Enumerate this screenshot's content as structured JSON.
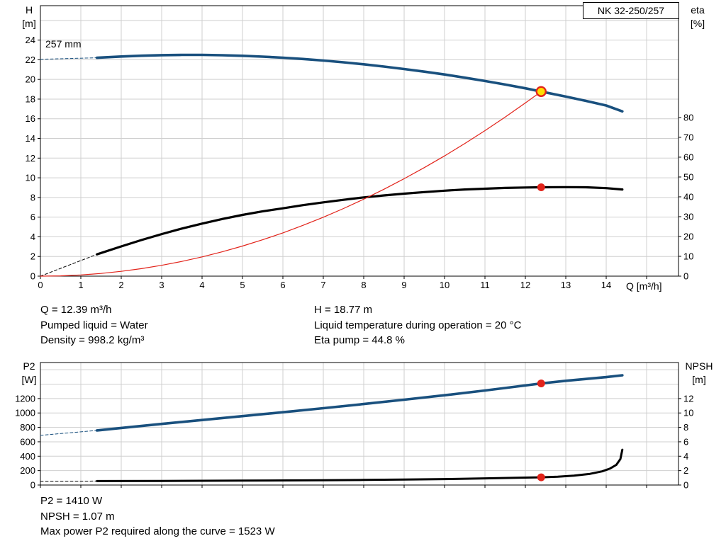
{
  "model_label": "NK 32-250/257",
  "impeller_label": "257 mm",
  "axes_labels": {
    "h_top": "H",
    "h_unit": "[m]",
    "eta_top": "eta",
    "eta_unit": "[%]",
    "q": "Q [m³/h]",
    "p2_top": "P2",
    "p2_unit": "[W]",
    "npsh_top": "NPSH",
    "npsh_unit": "[m]"
  },
  "info_top": {
    "left": [
      "Q = 12.39 m³/h",
      "Pumped liquid = Water",
      "Density = 998.2 kg/m³"
    ],
    "right": [
      "H = 18.77 m",
      "Liquid temperature during operation = 20 °C",
      "Eta pump = 44.8 %"
    ]
  },
  "info_bottom": [
    "P2 = 1410 W",
    "NPSH = 1.07 m",
    "Max power P2 required along the curve = 1523 W"
  ],
  "colors": {
    "curve_blue": "#19507e",
    "curve_black": "#000000",
    "curve_red": "#e2231a",
    "marker_yellow": "#ffdd00",
    "grid": "#cfcfcf",
    "axis": "#000000"
  },
  "chart_data": [
    {
      "type": "line",
      "title": "QH and efficiency curves",
      "xlabel": "Q [m³/h]",
      "ylabel": "H [m]",
      "y2label": "eta [%]",
      "xlim": [
        0,
        15.789
      ],
      "ylim": [
        0,
        27.5
      ],
      "y2lim": [
        0,
        136.4
      ],
      "grid_color": "#cfcfcf",
      "x_grid": [
        1,
        2,
        3,
        4,
        5,
        6,
        7,
        8,
        9,
        10,
        11,
        12,
        13,
        14,
        15
      ],
      "y_grid": [
        2,
        4,
        6,
        8,
        10,
        12,
        14,
        16,
        18,
        20,
        22,
        24,
        26
      ],
      "x_tick_marks": [
        0,
        1,
        2,
        3,
        4,
        5,
        6,
        7,
        8,
        9,
        10,
        11,
        12,
        13,
        14,
        15
      ],
      "x_ticks": [
        0,
        1,
        2,
        3,
        4,
        5,
        6,
        7,
        8,
        9,
        10,
        11,
        12,
        13,
        14
      ],
      "y_ticks": [
        0,
        2,
        4,
        6,
        8,
        10,
        12,
        14,
        16,
        18,
        20,
        22,
        24
      ],
      "y2_ticks": [
        0,
        10,
        20,
        30,
        40,
        50,
        60,
        70,
        80
      ],
      "series": [
        {
          "name": "pump-curve-extrapolated",
          "axis": "y",
          "color": "#19507e",
          "width": 1,
          "dash": "4 3",
          "points": [
            [
              0,
              22.05
            ],
            [
              1.4,
              22.2
            ]
          ]
        },
        {
          "name": "pump-curve",
          "axis": "y",
          "color": "#19507e",
          "width": 3.6,
          "points": [
            [
              1.4,
              22.2
            ],
            [
              2,
              22.33
            ],
            [
              2.5,
              22.41
            ],
            [
              3,
              22.47
            ],
            [
              3.5,
              22.5
            ],
            [
              4,
              22.5
            ],
            [
              4.5,
              22.46
            ],
            [
              5,
              22.4
            ],
            [
              5.5,
              22.32
            ],
            [
              6,
              22.21
            ],
            [
              6.5,
              22.08
            ],
            [
              7,
              21.92
            ],
            [
              7.5,
              21.74
            ],
            [
              8,
              21.54
            ],
            [
              8.5,
              21.31
            ],
            [
              9,
              21.06
            ],
            [
              9.5,
              20.79
            ],
            [
              10,
              20.5
            ],
            [
              10.5,
              20.18
            ],
            [
              11,
              19.84
            ],
            [
              11.5,
              19.48
            ],
            [
              12,
              19.1
            ],
            [
              12.39,
              18.77
            ],
            [
              13,
              18.26
            ],
            [
              13.5,
              17.82
            ],
            [
              14,
              17.35
            ],
            [
              14.4,
              16.75
            ]
          ]
        },
        {
          "name": "efficiency-curve-extrapolated",
          "axis": "y2",
          "color": "#000000",
          "width": 1,
          "dash": "4 3",
          "points": [
            [
              0,
              0
            ],
            [
              1.4,
              11
            ]
          ]
        },
        {
          "name": "efficiency-curve",
          "axis": "y2",
          "color": "#000000",
          "width": 3.2,
          "points": [
            [
              1.4,
              11
            ],
            [
              2,
              15
            ],
            [
              2.5,
              18.2
            ],
            [
              3,
              21.2
            ],
            [
              3.5,
              24
            ],
            [
              4,
              26.5
            ],
            [
              4.5,
              28.8
            ],
            [
              5,
              30.9
            ],
            [
              5.5,
              32.7
            ],
            [
              6,
              34.2
            ],
            [
              6.5,
              35.8
            ],
            [
              7,
              37.2
            ],
            [
              7.5,
              38.5
            ],
            [
              8,
              39.7
            ],
            [
              8.5,
              40.7
            ],
            [
              9,
              41.6
            ],
            [
              9.5,
              42.4
            ],
            [
              10,
              43.1
            ],
            [
              10.5,
              43.7
            ],
            [
              11,
              44.1
            ],
            [
              11.5,
              44.5
            ],
            [
              12,
              44.7
            ],
            [
              12.39,
              44.8
            ],
            [
              13,
              44.9
            ],
            [
              13.5,
              44.8
            ],
            [
              14,
              44.4
            ],
            [
              14.4,
              43.7
            ]
          ]
        },
        {
          "name": "system-curve",
          "axis": "y",
          "color": "#e2231a",
          "width": 1.2,
          "points": [
            [
              0,
              0
            ],
            [
              0.5,
              0.031
            ],
            [
              1,
              0.122
            ],
            [
              1.5,
              0.275
            ],
            [
              2,
              0.489
            ],
            [
              2.5,
              0.764
            ],
            [
              3,
              1.1
            ],
            [
              3.5,
              1.498
            ],
            [
              4,
              1.956
            ],
            [
              4.5,
              2.476
            ],
            [
              5,
              3.057
            ],
            [
              5.5,
              3.699
            ],
            [
              6,
              4.402
            ],
            [
              6.5,
              5.166
            ],
            [
              7,
              5.991
            ],
            [
              7.5,
              6.878
            ],
            [
              8,
              7.825
            ],
            [
              8.5,
              8.834
            ],
            [
              9,
              9.904
            ],
            [
              9.5,
              11.035
            ],
            [
              10,
              12.227
            ],
            [
              10.5,
              13.48
            ],
            [
              11,
              14.795
            ],
            [
              11.5,
              16.17
            ],
            [
              12,
              17.607
            ],
            [
              12.39,
              18.77
            ]
          ]
        }
      ],
      "markers": [
        {
          "name": "duty-point",
          "x": 12.39,
          "y": 18.77,
          "axis": "y",
          "r": 6.5,
          "fill": "#ffdd00",
          "stroke": "#e2231a",
          "stroke_width": 2.4
        },
        {
          "name": "efficiency-point",
          "x": 12.39,
          "y": 44.8,
          "axis": "y2",
          "r": 5.5,
          "fill": "#e2231a"
        }
      ]
    },
    {
      "type": "line",
      "title": "Power and NPSH curves",
      "xlabel": "Q [m³/h]",
      "ylabel": "P2 [W]",
      "y2label": "NPSH [m]",
      "xlim": [
        0,
        15.789
      ],
      "ylim": [
        0,
        1700
      ],
      "y2lim": [
        0,
        17
      ],
      "grid_color": "#cfcfcf",
      "x_grid": [
        1,
        2,
        3,
        4,
        5,
        6,
        7,
        8,
        9,
        10,
        11,
        12,
        13,
        14,
        15
      ],
      "y_grid": [
        200,
        400,
        600,
        800,
        1000,
        1200,
        1400,
        1600
      ],
      "x_tick_marks": [
        0,
        1,
        2,
        3,
        4,
        5,
        6,
        7,
        8,
        9,
        10,
        11,
        12,
        13,
        14,
        15
      ],
      "x_ticks": [],
      "y_ticks": [
        0,
        200,
        400,
        600,
        800,
        1000,
        1200
      ],
      "y2_ticks": [
        0,
        2,
        4,
        6,
        8,
        10,
        12
      ],
      "series": [
        {
          "name": "p2-curve-extrapolated",
          "axis": "y",
          "color": "#19507e",
          "width": 1,
          "dash": "4 3",
          "points": [
            [
              0,
              690
            ],
            [
              1.4,
              758
            ]
          ]
        },
        {
          "name": "p2-curve",
          "axis": "y",
          "color": "#19507e",
          "width": 3.6,
          "points": [
            [
              1.4,
              758
            ],
            [
              2,
              792
            ],
            [
              3,
              848
            ],
            [
              4,
              902
            ],
            [
              5,
              956
            ],
            [
              6,
              1010
            ],
            [
              7,
              1066
            ],
            [
              8,
              1124
            ],
            [
              9,
              1184
            ],
            [
              10,
              1246
            ],
            [
              11,
              1312
            ],
            [
              12,
              1382
            ],
            [
              12.39,
              1410
            ],
            [
              13,
              1446
            ],
            [
              13.5,
              1472
            ],
            [
              14,
              1498
            ],
            [
              14.4,
              1523
            ]
          ]
        },
        {
          "name": "npsh-curve-extrapolated",
          "axis": "y2",
          "color": "#000000",
          "width": 1,
          "dash": "4 3",
          "points": [
            [
              0,
              0.5
            ],
            [
              1.4,
              0.55
            ]
          ]
        },
        {
          "name": "npsh-curve",
          "axis": "y2",
          "color": "#000000",
          "width": 3,
          "points": [
            [
              1.4,
              0.55
            ],
            [
              3,
              0.57
            ],
            [
              5,
              0.61
            ],
            [
              7,
              0.67
            ],
            [
              8,
              0.71
            ],
            [
              9,
              0.76
            ],
            [
              10,
              0.83
            ],
            [
              11,
              0.92
            ],
            [
              12,
              1.03
            ],
            [
              12.39,
              1.07
            ],
            [
              12.8,
              1.16
            ],
            [
              13.2,
              1.3
            ],
            [
              13.6,
              1.55
            ],
            [
              13.9,
              1.9
            ],
            [
              14.1,
              2.3
            ],
            [
              14.25,
              2.8
            ],
            [
              14.35,
              3.6
            ],
            [
              14.4,
              4.9
            ]
          ]
        }
      ],
      "markers": [
        {
          "name": "p2-point",
          "x": 12.39,
          "y": 1410,
          "axis": "y",
          "r": 5.5,
          "fill": "#e2231a"
        },
        {
          "name": "npsh-point",
          "x": 12.39,
          "y": 1.07,
          "axis": "y2",
          "r": 5.5,
          "fill": "#e2231a"
        }
      ]
    }
  ]
}
